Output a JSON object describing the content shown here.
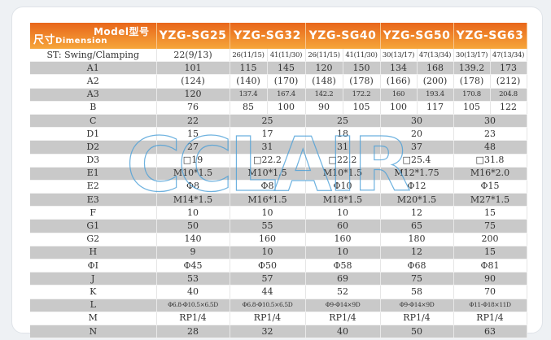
{
  "header": {
    "model_label": "Model型号",
    "dimension_label_cn": "尺寸",
    "dimension_label_en": "Dimension",
    "models": [
      "YZG-SG25",
      "YZG-SG32",
      "YZG-SG40",
      "YZG-SG50",
      "YZG-SG63"
    ]
  },
  "rows": [
    {
      "label": "ST: Swing/Clamping",
      "cells": [
        "22(9/13)",
        [
          "26(11/15)",
          "41(11/30)"
        ],
        [
          "26(11/15)",
          "41(11/30)"
        ],
        [
          "30(13/17)",
          "47(13/34)"
        ],
        [
          "30(13/17)",
          "47(13/34)"
        ]
      ]
    },
    {
      "label": "A1",
      "cells": [
        "101",
        [
          "115",
          "145"
        ],
        [
          "120",
          "150"
        ],
        [
          "134",
          "168"
        ],
        [
          "139.2",
          "173"
        ]
      ]
    },
    {
      "label": "A2",
      "cells": [
        "(124)",
        [
          "(140)",
          "(170)"
        ],
        [
          "(148)",
          "(178)"
        ],
        [
          "(166)",
          "(200)"
        ],
        [
          "(178)",
          "(212)"
        ]
      ]
    },
    {
      "label": "A3",
      "cells": [
        "120",
        [
          "137.4",
          "167.4"
        ],
        [
          "142.2",
          "172.2"
        ],
        [
          "160",
          "193.4"
        ],
        [
          "170.8",
          "204.8"
        ]
      ]
    },
    {
      "label": "B",
      "cells": [
        "76",
        [
          "85",
          "100"
        ],
        [
          "90",
          "105"
        ],
        [
          "100",
          "117"
        ],
        [
          "105",
          "122"
        ]
      ]
    },
    {
      "label": "C",
      "cells": [
        "22",
        "25",
        "25",
        "30",
        "30"
      ]
    },
    {
      "label": "D1",
      "cells": [
        "15",
        "17",
        "18",
        "20",
        "23"
      ]
    },
    {
      "label": "D2",
      "cells": [
        "27",
        "31",
        "31",
        "37",
        "48"
      ]
    },
    {
      "label": "D3",
      "cells": [
        "□19",
        "□22.2",
        "□22.2",
        "□25.4",
        "□31.8"
      ]
    },
    {
      "label": "E1",
      "cells": [
        "M10*1.5",
        "M10*1.5",
        "M10*1.5",
        "M12*1.75",
        "M16*2.0"
      ]
    },
    {
      "label": "E2",
      "cells": [
        "Φ8",
        "Φ8",
        "Φ10",
        "Φ12",
        "Φ15"
      ]
    },
    {
      "label": "E3",
      "cells": [
        "M14*1.5",
        "M16*1.5",
        "M18*1.5",
        "M20*1.5",
        "M27*1.5"
      ]
    },
    {
      "label": "F",
      "cells": [
        "10",
        "10",
        "10",
        "12",
        "15"
      ]
    },
    {
      "label": "G1",
      "cells": [
        "50",
        "55",
        "60",
        "65",
        "75"
      ]
    },
    {
      "label": "G2",
      "cells": [
        "140",
        "160",
        "160",
        "180",
        "200"
      ]
    },
    {
      "label": "H",
      "cells": [
        "9",
        "10",
        "10",
        "12",
        "15"
      ]
    },
    {
      "label": "ΦI",
      "cells": [
        "Φ45",
        "Φ50",
        "Φ58",
        "Φ68",
        "Φ81"
      ]
    },
    {
      "label": "J",
      "cells": [
        "53",
        "57",
        "69",
        "75",
        "90"
      ]
    },
    {
      "label": "K",
      "cells": [
        "40",
        "44",
        "52",
        "58",
        "70"
      ]
    },
    {
      "label": "L",
      "cells": [
        "Φ6.8-Φ10.5×6.5D",
        "Φ6.8-Φ10.5×6.5D",
        "Φ9-Φ14×9D",
        "Φ9-Φ14×9D",
        "Φ11-Φ18×11D"
      ]
    },
    {
      "label": "M",
      "cells": [
        "RP1/4",
        "RP1/4",
        "RP1/4",
        "RP1/4",
        "RP1/4"
      ]
    },
    {
      "label": "N",
      "cells": [
        "28",
        "32",
        "40",
        "50",
        "63"
      ]
    }
  ],
  "watermark": "CCLAIR",
  "colors": {
    "header_top": "#e8661a",
    "header_bottom": "#f6a63a",
    "stripe": "#c9c9c9",
    "watermark": "#4a9fd8"
  }
}
